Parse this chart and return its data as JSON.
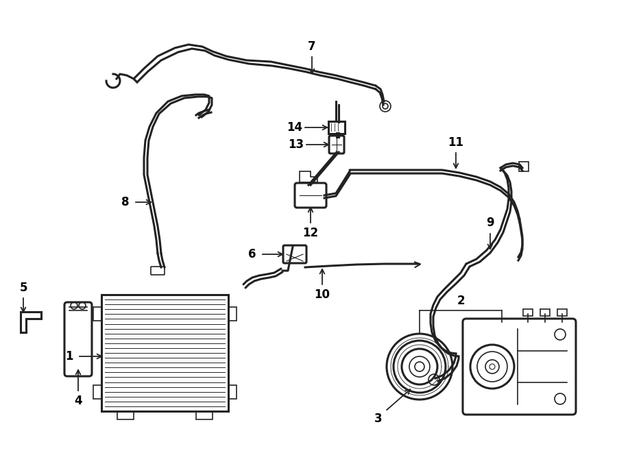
{
  "bg_color": "#ffffff",
  "line_color": "#222222",
  "fig_width": 9.0,
  "fig_height": 6.61,
  "dpi": 100,
  "lw_tube": 2.2,
  "lw_thin": 1.2,
  "label_fontsize": 12
}
